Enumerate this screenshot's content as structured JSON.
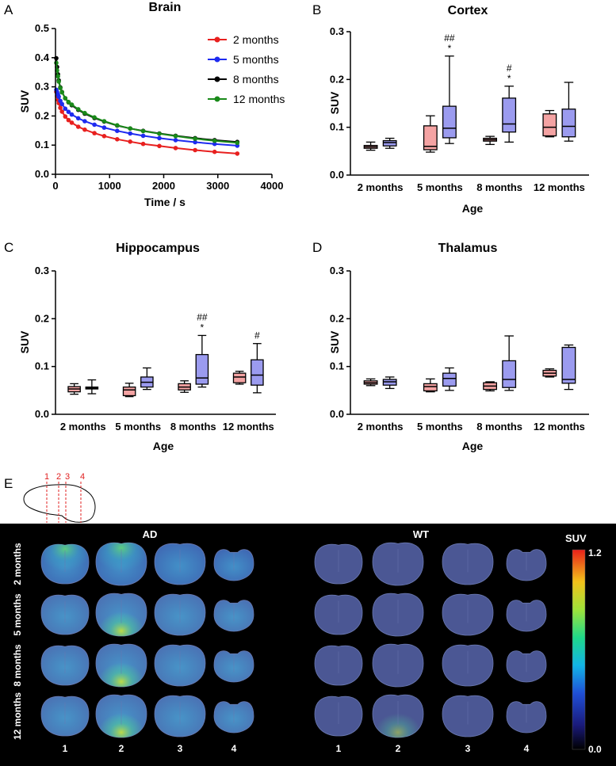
{
  "panel_labels": {
    "a": "A",
    "b": "B",
    "c": "C",
    "d": "D",
    "e": "E"
  },
  "chart_data": [
    {
      "id": "A",
      "type": "line",
      "title": "Brain",
      "xlabel": "Time / s",
      "ylabel": "SUV",
      "xlim": [
        0,
        4000
      ],
      "ylim": [
        0,
        0.5
      ],
      "xticks": [
        0,
        1000,
        2000,
        3000,
        4000
      ],
      "yticks": [
        0,
        0.1,
        0.2,
        0.3,
        0.4,
        0.5
      ],
      "ytick_labels": [
        "0.0",
        "0.1",
        "0.2",
        "0.3",
        "0.4",
        "0.5"
      ],
      "legend": "top-right",
      "series": [
        {
          "name": "2 months",
          "color": "#e8201f",
          "x": [
            15,
            30,
            45,
            60,
            90,
            120,
            180,
            240,
            300,
            420,
            540,
            720,
            900,
            1140,
            1380,
            1620,
            1920,
            2220,
            2580,
            2940,
            3360
          ],
          "y": [
            0.283,
            0.268,
            0.255,
            0.244,
            0.228,
            0.215,
            0.198,
            0.186,
            0.177,
            0.163,
            0.153,
            0.141,
            0.131,
            0.12,
            0.112,
            0.104,
            0.097,
            0.09,
            0.083,
            0.077,
            0.071
          ]
        },
        {
          "name": "5 months",
          "color": "#1e2bf0",
          "x": [
            15,
            30,
            45,
            60,
            90,
            120,
            180,
            240,
            300,
            420,
            540,
            720,
            900,
            1140,
            1380,
            1620,
            1920,
            2220,
            2580,
            2940,
            3360
          ],
          "y": [
            0.29,
            0.282,
            0.274,
            0.266,
            0.252,
            0.241,
            0.225,
            0.214,
            0.205,
            0.192,
            0.182,
            0.17,
            0.16,
            0.149,
            0.14,
            0.132,
            0.124,
            0.117,
            0.11,
            0.104,
            0.098
          ]
        },
        {
          "name": "8 months",
          "color": "#000000",
          "x": [
            15,
            30,
            45,
            60,
            90,
            120,
            180,
            240,
            300,
            420,
            540,
            720,
            900,
            1140,
            1380,
            1620,
            1920,
            2220,
            2580,
            2940,
            3360
          ],
          "y": [
            0.398,
            0.368,
            0.343,
            0.322,
            0.298,
            0.282,
            0.261,
            0.247,
            0.237,
            0.221,
            0.208,
            0.193,
            0.181,
            0.167,
            0.157,
            0.149,
            0.14,
            0.132,
            0.124,
            0.117,
            0.111
          ]
        },
        {
          "name": "12 months",
          "color": "#1a8a1a",
          "x": [
            15,
            30,
            45,
            60,
            90,
            120,
            180,
            240,
            300,
            420,
            540,
            720,
            900,
            1140,
            1380,
            1620,
            1920,
            2220,
            2580,
            2940,
            3360
          ],
          "y": [
            0.382,
            0.356,
            0.336,
            0.318,
            0.296,
            0.281,
            0.261,
            0.248,
            0.239,
            0.223,
            0.21,
            0.195,
            0.182,
            0.168,
            0.157,
            0.148,
            0.139,
            0.131,
            0.122,
            0.115,
            0.108
          ]
        }
      ]
    },
    {
      "id": "B",
      "type": "box",
      "title": "Cortex",
      "xlabel": "Age",
      "ylabel": "SUV",
      "ylim": [
        0,
        0.3
      ],
      "yticks": [
        0,
        0.1,
        0.2,
        0.3
      ],
      "ytick_labels": [
        "0.0",
        "0.1",
        "0.2",
        "0.3"
      ],
      "categories": [
        "2 months",
        "5 months",
        "8 months",
        "12 months"
      ],
      "series": [
        {
          "name": "WT",
          "color": "#f4a3a3",
          "boxes": [
            {
              "min": 0.052,
              "q1": 0.056,
              "median": 0.059,
              "q3": 0.062,
              "max": 0.069
            },
            {
              "min": 0.048,
              "q1": 0.053,
              "median": 0.06,
              "q3": 0.103,
              "max": 0.124
            },
            {
              "min": 0.064,
              "q1": 0.071,
              "median": 0.074,
              "q3": 0.077,
              "max": 0.081
            },
            {
              "min": 0.08,
              "q1": 0.082,
              "median": 0.1,
              "q3": 0.128,
              "max": 0.135
            }
          ]
        },
        {
          "name": "AD",
          "color": "#9b9bef",
          "boxes": [
            {
              "min": 0.056,
              "q1": 0.061,
              "median": 0.068,
              "q3": 0.072,
              "max": 0.077
            },
            {
              "min": 0.066,
              "q1": 0.078,
              "median": 0.098,
              "q3": 0.144,
              "max": 0.249
            },
            {
              "min": 0.069,
              "q1": 0.09,
              "median": 0.107,
              "q3": 0.161,
              "max": 0.186
            },
            {
              "min": 0.071,
              "q1": 0.08,
              "median": 0.102,
              "q3": 0.138,
              "max": 0.194
            }
          ]
        }
      ],
      "annotations": [
        {
          "category": 1,
          "lines": [
            "##",
            "*"
          ]
        },
        {
          "category": 2,
          "lines": [
            "#",
            "*"
          ]
        }
      ]
    },
    {
      "id": "C",
      "type": "box",
      "title": "Hippocampus",
      "xlabel": "Age",
      "ylabel": "SUV",
      "ylim": [
        0,
        0.3
      ],
      "yticks": [
        0,
        0.1,
        0.2,
        0.3
      ],
      "ytick_labels": [
        "0.0",
        "0.1",
        "0.2",
        "0.3"
      ],
      "categories": [
        "2 months",
        "5 months",
        "8 months",
        "12 months"
      ],
      "series": [
        {
          "name": "WT",
          "color": "#f4a3a3",
          "boxes": [
            {
              "min": 0.042,
              "q1": 0.047,
              "median": 0.053,
              "q3": 0.058,
              "max": 0.064
            },
            {
              "min": 0.037,
              "q1": 0.039,
              "median": 0.051,
              "q3": 0.057,
              "max": 0.065
            },
            {
              "min": 0.046,
              "q1": 0.051,
              "median": 0.057,
              "q3": 0.064,
              "max": 0.07
            },
            {
              "min": 0.063,
              "q1": 0.066,
              "median": 0.078,
              "q3": 0.086,
              "max": 0.09
            }
          ]
        },
        {
          "name": "AD",
          "color": "#9b9bef",
          "boxes": [
            {
              "min": 0.043,
              "q1": 0.053,
              "median": 0.055,
              "q3": 0.057,
              "max": 0.072
            },
            {
              "min": 0.052,
              "q1": 0.057,
              "median": 0.067,
              "q3": 0.078,
              "max": 0.097
            },
            {
              "min": 0.057,
              "q1": 0.063,
              "median": 0.076,
              "q3": 0.125,
              "max": 0.165
            },
            {
              "min": 0.045,
              "q1": 0.061,
              "median": 0.082,
              "q3": 0.114,
              "max": 0.148
            }
          ]
        }
      ],
      "annotations": [
        {
          "category": 2,
          "lines": [
            "##",
            "*"
          ]
        },
        {
          "category": 3,
          "lines": [
            "#"
          ]
        }
      ]
    },
    {
      "id": "D",
      "type": "box",
      "title": "Thalamus",
      "xlabel": "Age",
      "ylabel": "SUV",
      "ylim": [
        0,
        0.3
      ],
      "yticks": [
        0,
        0.1,
        0.2,
        0.3
      ],
      "ytick_labels": [
        "0.0",
        "0.1",
        "0.2",
        "0.3"
      ],
      "categories": [
        "2 months",
        "5 months",
        "8 months",
        "12 months"
      ],
      "series": [
        {
          "name": "WT",
          "color": "#f4a3a3",
          "boxes": [
            {
              "min": 0.06,
              "q1": 0.063,
              "median": 0.066,
              "q3": 0.07,
              "max": 0.074
            },
            {
              "min": 0.047,
              "q1": 0.049,
              "median": 0.058,
              "q3": 0.064,
              "max": 0.074
            },
            {
              "min": 0.049,
              "q1": 0.052,
              "median": 0.059,
              "q3": 0.066,
              "max": 0.068
            },
            {
              "min": 0.078,
              "q1": 0.08,
              "median": 0.086,
              "q3": 0.092,
              "max": 0.095
            }
          ]
        },
        {
          "name": "AD",
          "color": "#9b9bef",
          "boxes": [
            {
              "min": 0.054,
              "q1": 0.061,
              "median": 0.068,
              "q3": 0.073,
              "max": 0.078
            },
            {
              "min": 0.05,
              "q1": 0.059,
              "median": 0.075,
              "q3": 0.086,
              "max": 0.097
            },
            {
              "min": 0.05,
              "q1": 0.056,
              "median": 0.073,
              "q3": 0.112,
              "max": 0.164
            },
            {
              "min": 0.052,
              "q1": 0.065,
              "median": 0.073,
              "q3": 0.14,
              "max": 0.145
            }
          ]
        }
      ],
      "annotations": []
    }
  ],
  "panel_e": {
    "sketch_slices": [
      "1",
      "2",
      "3",
      "4"
    ],
    "group_labels": [
      "AD",
      "WT"
    ],
    "row_labels": [
      "2 months",
      "5 months",
      "8 months",
      "12 months"
    ],
    "col_labels": [
      "1",
      "2",
      "3",
      "4"
    ],
    "colorbar": {
      "title": "SUV",
      "max_label": "1.2",
      "min_label": "0.0",
      "min": 0.0,
      "max": 1.2
    },
    "colors": {
      "background": "#000000",
      "text": "#ffffff",
      "sketch_marker": "#e02020",
      "slice_base": "#4a5a9c"
    }
  }
}
